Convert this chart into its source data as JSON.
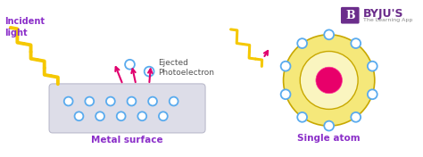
{
  "bg_color": "#ffffff",
  "incident_light_label": "Incident\nlight",
  "ejected_label": "Ejected\nPhotoelectron",
  "metal_surface_label": "Metal surface",
  "single_atom_label": "Single atom",
  "label_color": "#8b2fc9",
  "electron_color": "#5aabee",
  "nucleus_color": "#e8006a",
  "zigzag_color_yellow": "#f5c800",
  "zigzag_color_magenta": "#e0006e",
  "metal_box_color": "#dddde8",
  "metal_box_edge": "#bbbbcc",
  "atom_outer_color": "#f5e87a",
  "atom_outer_edge": "#c8a800",
  "atom_inner_color": "#faf5c0",
  "arrow_color": "#e0006e",
  "byju_purple": "#6b2d8b",
  "byju_text": "BYJU'S",
  "byju_sub": "The Learning App",
  "text_dark": "#555555"
}
